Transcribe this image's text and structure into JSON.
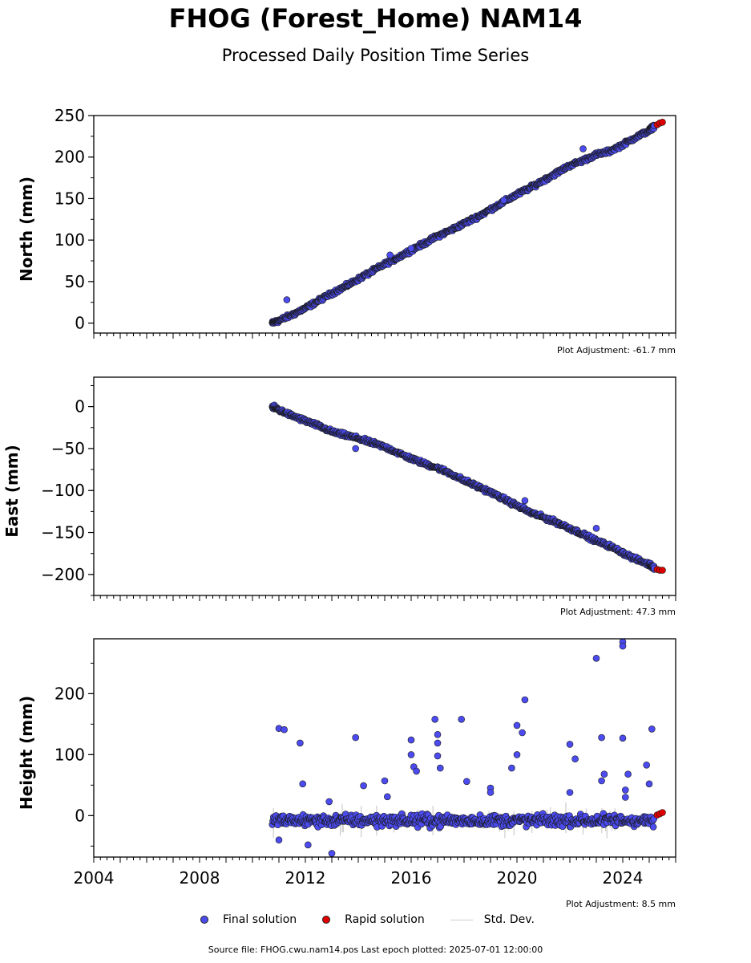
{
  "header": {
    "title": "FHOG (Forest_Home) NAM14",
    "subtitle": "Processed Daily Position Time Series"
  },
  "legend": {
    "final_label": "Final solution",
    "rapid_label": "Rapid solution",
    "std_label": "Std. Dev."
  },
  "colors": {
    "final": "#4b4bf0",
    "rapid": "#e00000",
    "std_dev": "#cccccc"
  },
  "footer": {
    "source": "Source file: FHOG.cwu.nam14.pos  Last epoch plotted: 2025-07-01 12:00:00"
  },
  "chart_data": [
    {
      "type": "scatter",
      "ylabel": "North (mm)",
      "adjustment_label": "Plot Adjustment: -61.7 mm",
      "xlim": [
        2004,
        2026
      ],
      "ylim": [
        -12,
        250
      ],
      "yticks": [
        0,
        50,
        100,
        150,
        200,
        250
      ],
      "ytick_labels": [
        "0",
        "50",
        "100",
        "150",
        "200",
        "250"
      ],
      "series": [
        {
          "role": "final",
          "x": [
            2010.75,
            2011.0,
            2011.5,
            2012.0,
            2012.5,
            2013.0,
            2013.5,
            2014.0,
            2014.5,
            2015.0,
            2015.5,
            2016.0,
            2016.5,
            2017.0,
            2017.5,
            2018.0,
            2018.5,
            2019.0,
            2019.5,
            2020.0,
            2020.5,
            2021.0,
            2021.5,
            2022.0,
            2022.5,
            2023.0,
            2023.5,
            2024.0,
            2024.5,
            2025.0,
            2025.2
          ],
          "y": [
            0,
            3,
            10,
            18,
            27,
            36,
            44,
            53,
            62,
            71,
            79,
            88,
            96,
            105,
            112,
            120,
            128,
            137,
            146,
            155,
            163,
            172,
            181,
            190,
            196,
            203,
            207,
            215,
            224,
            232,
            238
          ]
        },
        {
          "role": "rapid",
          "x": [
            2025.3,
            2025.4,
            2025.5
          ],
          "y": [
            239,
            241,
            242
          ]
        }
      ],
      "outliers": {
        "x": [
          2011.3,
          2015.2,
          2016.0,
          2019.5,
          2022.5
        ],
        "y": [
          28,
          82,
          90,
          148,
          210
        ]
      }
    },
    {
      "type": "scatter",
      "ylabel": "East (mm)",
      "adjustment_label": "Plot Adjustment: 47.3 mm",
      "xlim": [
        2004,
        2026
      ],
      "ylim": [
        -225,
        35
      ],
      "yticks": [
        0,
        -50,
        -100,
        -150,
        -200
      ],
      "ytick_labels": [
        "0",
        "−50",
        "−100",
        "−150",
        "−200"
      ],
      "series": [
        {
          "role": "final",
          "x": [
            2010.75,
            2011.0,
            2011.5,
            2012.0,
            2012.5,
            2013.0,
            2013.5,
            2014.0,
            2014.5,
            2015.0,
            2015.5,
            2016.0,
            2016.5,
            2017.0,
            2017.5,
            2018.0,
            2018.5,
            2019.0,
            2019.5,
            2020.0,
            2020.5,
            2021.0,
            2021.5,
            2022.0,
            2022.5,
            2023.0,
            2023.5,
            2024.0,
            2024.5,
            2025.0,
            2025.2
          ],
          "y": [
            0,
            -4,
            -11,
            -17,
            -23,
            -30,
            -34,
            -38,
            -43,
            -48,
            -55,
            -62,
            -68,
            -73,
            -80,
            -88,
            -95,
            -102,
            -110,
            -118,
            -126,
            -132,
            -138,
            -145,
            -152,
            -160,
            -166,
            -174,
            -182,
            -188,
            -192
          ]
        },
        {
          "role": "rapid",
          "x": [
            2025.3,
            2025.4,
            2025.5
          ],
          "y": [
            -194,
            -195,
            -195
          ]
        }
      ],
      "outliers": {
        "x": [
          2013.9,
          2020.3,
          2023.0
        ],
        "y": [
          -50,
          -112,
          -145
        ]
      }
    },
    {
      "type": "scatter",
      "ylabel": "Height (mm)",
      "adjustment_label": "Plot Adjustment: 8.5 mm",
      "xlim": [
        2004,
        2026
      ],
      "ylim": [
        -68,
        290
      ],
      "yticks": [
        0,
        100,
        200
      ],
      "ytick_labels": [
        "0",
        "100",
        "200"
      ],
      "xticks": [
        2004,
        2008,
        2012,
        2016,
        2020,
        2024
      ],
      "xtick_labels": [
        "2004",
        "2008",
        "2012",
        "2016",
        "2020",
        "2024"
      ],
      "baseline": {
        "x_start": 2010.75,
        "x_end": 2025.2,
        "y_mean": -8,
        "spread": 12
      },
      "series": [
        {
          "role": "final",
          "x": [
            2011.0,
            2011.2,
            2011.8,
            2011.9,
            2012.9,
            2013.9,
            2014.2,
            2015.0,
            2015.1,
            2016.0,
            2016.0,
            2016.1,
            2016.2,
            2016.9,
            2017.0,
            2017.0,
            2017.0,
            2017.1,
            2017.9,
            2018.1,
            2019.0,
            2019.0,
            2019.8,
            2020.0,
            2020.0,
            2020.2,
            2020.3,
            2022.0,
            2022.0,
            2022.2,
            2023.0,
            2023.2,
            2023.2,
            2023.3,
            2024.0,
            2024.0,
            2024.0,
            2024.1,
            2024.1,
            2024.2,
            2024.9,
            2025.0,
            2025.1,
            2011.0,
            2012.1,
            2013.0
          ],
          "y": [
            143,
            141,
            119,
            52,
            23,
            128,
            49,
            57,
            31,
            124,
            100,
            80,
            73,
            158,
            133,
            119,
            98,
            78,
            158,
            56,
            45,
            38,
            78,
            148,
            100,
            136,
            190,
            117,
            38,
            93,
            258,
            128,
            57,
            68,
            285,
            278,
            127,
            42,
            30,
            68,
            83,
            52,
            142,
            -40,
            -48,
            -62
          ]
        },
        {
          "role": "rapid",
          "x": [
            2025.3,
            2025.4,
            2025.5
          ],
          "y": [
            1,
            3,
            5
          ]
        }
      ]
    }
  ]
}
